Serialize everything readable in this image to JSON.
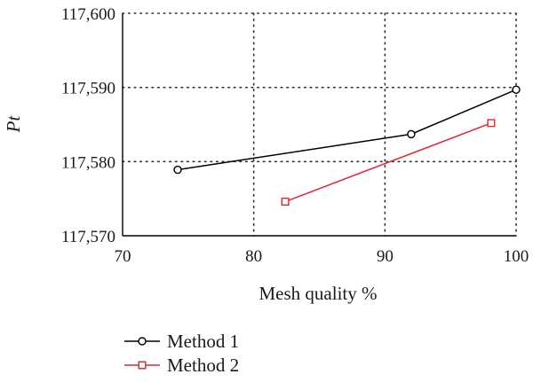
{
  "chart_data": {
    "type": "line",
    "xlabel": "Mesh quality %",
    "ylabel": "Pt",
    "xlim": [
      70,
      100
    ],
    "ylim": [
      117570,
      117600
    ],
    "xticks": [
      70,
      80,
      90,
      100
    ],
    "xtick_labels": [
      "70",
      "80",
      "90",
      "100"
    ],
    "yticks": [
      117570,
      117580,
      117590,
      117600
    ],
    "ytick_labels": [
      "117,570",
      "117,580",
      "117,590",
      "117,600"
    ],
    "grid": true,
    "grid_style": "dotted",
    "legend_position": "bottom-left",
    "series": [
      {
        "name": "Method 1",
        "color": "#000000",
        "marker": "circle",
        "x": [
          74.2,
          92.0,
          100.0
        ],
        "y": [
          117578.9,
          117583.7,
          117589.7
        ]
      },
      {
        "name": "Method 2",
        "color": "#e3262d",
        "marker": "square",
        "x": [
          82.4,
          98.1
        ],
        "y": [
          117574.6,
          117585.2
        ]
      }
    ]
  }
}
